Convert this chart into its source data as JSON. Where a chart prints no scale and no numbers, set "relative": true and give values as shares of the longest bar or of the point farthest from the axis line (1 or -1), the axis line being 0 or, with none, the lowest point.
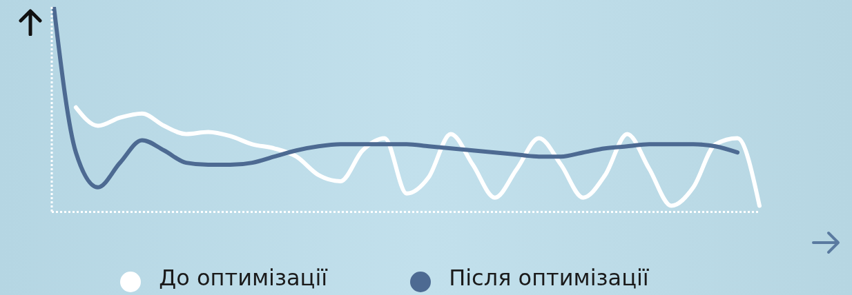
{
  "chart_data": {
    "type": "line",
    "relative": true,
    "categories": [
      null,
      null,
      null,
      null,
      null,
      null,
      null,
      null,
      null,
      null,
      null,
      null,
      null,
      null,
      null,
      null,
      null,
      null,
      null,
      null,
      null,
      null,
      null,
      null,
      null,
      null,
      null,
      null,
      null,
      null,
      null,
      null,
      null
    ],
    "series": [
      {
        "name": "До оптимізації",
        "color": "#ffffff",
        "values": [
          null,
          0.51,
          0.42,
          0.46,
          0.48,
          0.42,
          0.38,
          0.39,
          0.37,
          0.33,
          0.31,
          0.27,
          0.18,
          0.15,
          0.3,
          0.36,
          0.09,
          0.17,
          0.38,
          0.23,
          0.07,
          0.21,
          0.36,
          0.23,
          0.07,
          0.18,
          0.38,
          0.21,
          0.03,
          0.12,
          0.33,
          0.36,
          0.03
        ]
      },
      {
        "name": "Після оптимізації",
        "color": "#4d6a92",
        "values": [
          1,
          0.29,
          0.12,
          0.24,
          0.35,
          0.3,
          0.24,
          0.23,
          0.23,
          0.24,
          0.27,
          0.3,
          0.32,
          0.33,
          0.33,
          0.33,
          0.33,
          0.32,
          0.31,
          0.3,
          0.29,
          0.28,
          0.27,
          0.27,
          0.29,
          0.31,
          0.32,
          0.33,
          0.33,
          0.33,
          0.32,
          0.29,
          null
        ]
      }
    ],
    "legend": "bottom",
    "marker": "none",
    "line_style": "solid",
    "grid": false
  }
}
